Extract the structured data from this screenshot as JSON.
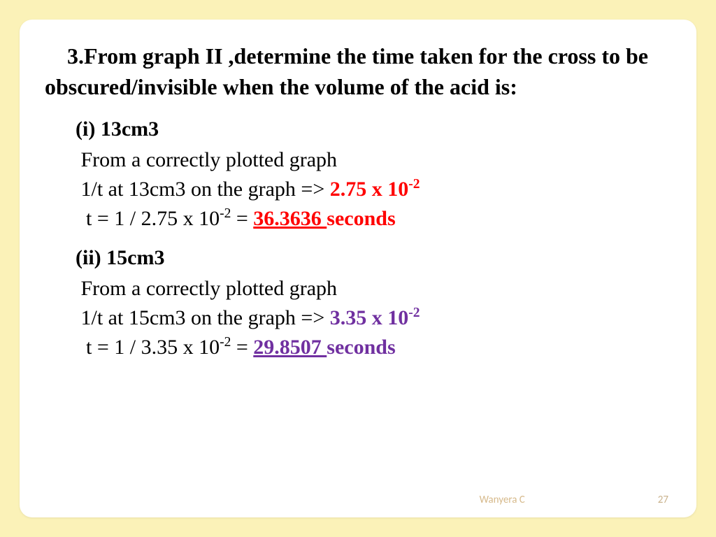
{
  "question": "3.From graph II ,determine the time taken for the cross to be obscured/invisible when the volume of the acid is:",
  "partI": {
    "heading": "(i) 13cm3",
    "line1": "From a correctly plotted graph",
    "line2_prefix": "1/t  at 13cm3  on the graph => ",
    "line2_value": "2.75 x 10",
    "line2_exp": "-2",
    "line3_prefix": " t  =  1 /  2.75 x 10",
    "line3_exp": "-2",
    "line3_mid": "   =   ",
    "line3_result": "36.3636 ",
    "line3_suffix": "seconds"
  },
  "partII": {
    "heading": "(ii) 15cm3",
    "line1": "From a correctly plotted graph",
    "line2_prefix": "1/t  at 15cm3  on the graph => ",
    "line2_value": "3.35 x 10",
    "line2_exp": "-2",
    "line3_prefix": " t  =  1 /  3.35 x 10",
    "line3_exp": "-2",
    "line3_mid": "   =   ",
    "line3_result": "29.8507 ",
    "line3_suffix": "seconds"
  },
  "footer": {
    "author": "Wanyera C",
    "page": "27"
  },
  "colors": {
    "background": "#fbf2b8",
    "slide": "#ffffff",
    "text": "#000000",
    "red": "#ff0000",
    "purple": "#7030a0",
    "footer": "#c9b28c"
  }
}
